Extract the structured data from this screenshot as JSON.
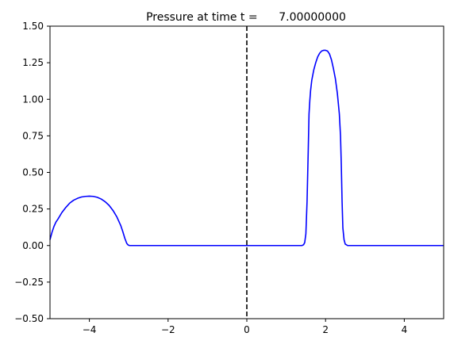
{
  "chart_data": {
    "type": "line",
    "title": "Pressure at time t =      7.00000000",
    "xlabel": "",
    "ylabel": "",
    "xlim": [
      -5,
      5
    ],
    "ylim": [
      -0.5,
      1.5
    ],
    "grid": false,
    "x_ticks": [
      -4,
      -2,
      0,
      2,
      4
    ],
    "x_tick_labels": [
      "−4",
      "−2",
      "0",
      "2",
      "4"
    ],
    "y_ticks": [
      -0.5,
      -0.25,
      0.0,
      0.25,
      0.5,
      0.75,
      1.0,
      1.25,
      1.5
    ],
    "y_tick_labels": [
      "−0.50",
      "−0.25",
      "0.00",
      "0.25",
      "0.50",
      "0.75",
      "1.00",
      "1.25",
      "1.50"
    ],
    "series": [
      {
        "color": "#0000ff",
        "style": "solid",
        "x": [
          -5.0,
          -4.95,
          -4.9,
          -4.85,
          -4.8,
          -4.7,
          -4.6,
          -4.5,
          -4.4,
          -4.3,
          -4.2,
          -4.1,
          -4.0,
          -3.9,
          -3.8,
          -3.7,
          -3.6,
          -3.5,
          -3.4,
          -3.3,
          -3.2,
          -3.15,
          -3.1,
          -3.05,
          -3.02,
          -3.0,
          -2.98,
          -2.95,
          -2.9,
          -2.5,
          -2.0,
          -1.0,
          0.0,
          1.0,
          1.4,
          1.44,
          1.47,
          1.5,
          1.53,
          1.56,
          1.58,
          1.6,
          1.62,
          1.65,
          1.7,
          1.75,
          1.8,
          1.85,
          1.9,
          1.95,
          2.0,
          2.05,
          2.1,
          2.15,
          2.2,
          2.25,
          2.3,
          2.35,
          2.38,
          2.4,
          2.42,
          2.44,
          2.47,
          2.5,
          2.53,
          2.56,
          2.6,
          3.0,
          4.0,
          5.0
        ],
        "y": [
          0.04,
          0.09,
          0.13,
          0.16,
          0.18,
          0.225,
          0.26,
          0.29,
          0.31,
          0.323,
          0.332,
          0.336,
          0.338,
          0.336,
          0.33,
          0.318,
          0.3,
          0.275,
          0.24,
          0.195,
          0.135,
          0.095,
          0.05,
          0.015,
          0.005,
          0.002,
          0.0,
          0.0,
          0.0,
          0.0,
          0.0,
          0.0,
          0.0,
          0.0,
          0.0,
          0.005,
          0.02,
          0.08,
          0.3,
          0.65,
          0.9,
          0.99,
          1.06,
          1.13,
          1.2,
          1.25,
          1.29,
          1.315,
          1.33,
          1.335,
          1.335,
          1.33,
          1.31,
          1.27,
          1.21,
          1.14,
          1.04,
          0.9,
          0.75,
          0.55,
          0.3,
          0.12,
          0.04,
          0.01,
          0.005,
          0.0,
          0.0,
          0.0,
          0.0,
          0.0
        ]
      }
    ],
    "reference_lines": [
      {
        "orientation": "vertical",
        "x": 0,
        "color": "#000000",
        "style": "dashed"
      }
    ]
  }
}
